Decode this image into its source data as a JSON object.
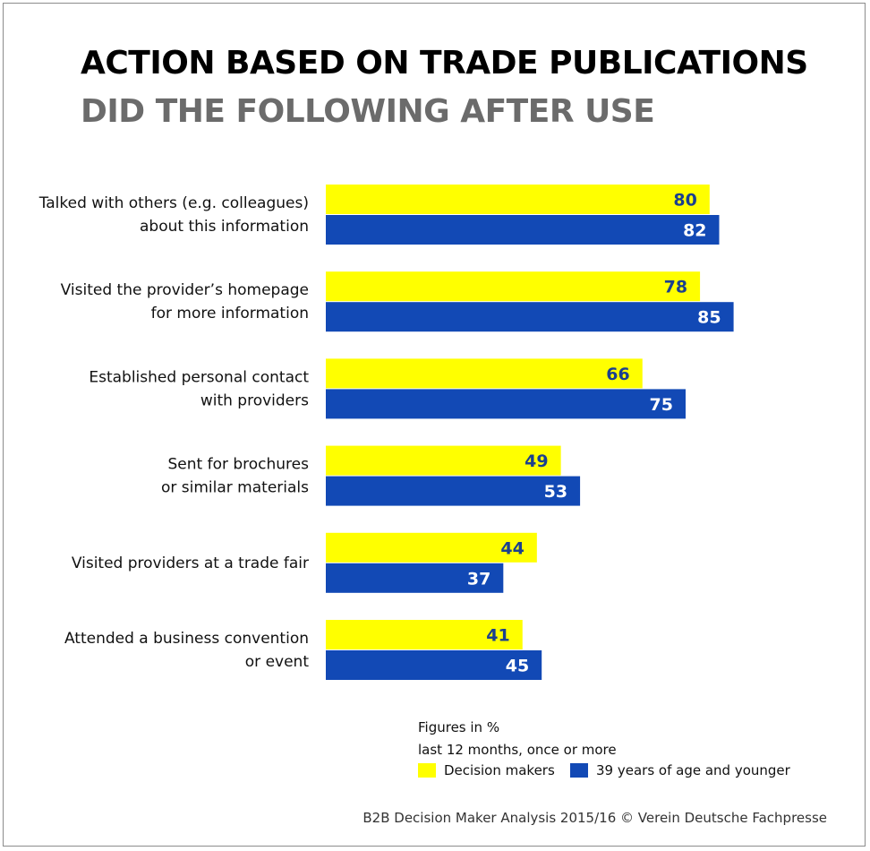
{
  "title": "ACTION BASED ON TRADE PUBLICATIONS",
  "subtitle": "DID THE FOLLOWING AFTER USE",
  "notes": [
    "Figures in %",
    "last 12 months, once or more"
  ],
  "source": "B2B Decision Maker Analysis 2015/16 © Verein Deutsche Fachpresse",
  "colors": {
    "series1": "#ffff00",
    "series2": "#1249b5",
    "label1": "#1a3f8f",
    "label2": "#ffffff"
  },
  "chart_data": {
    "type": "bar",
    "orientation": "horizontal",
    "categories": [
      [
        "Talked with others (e.g. colleagues)",
        "about this information"
      ],
      [
        "Visited the provider’s homepage",
        "for more information"
      ],
      [
        "Established personal contact",
        "with providers"
      ],
      [
        "Sent for brochures",
        "or similar materials"
      ],
      [
        "Visited providers at a trade fair"
      ],
      [
        "Attended a business convention",
        "or event"
      ]
    ],
    "series": [
      {
        "name": "Decision makers",
        "values": [
          80,
          78,
          66,
          49,
          44,
          41
        ]
      },
      {
        "name": "39 years of age and younger",
        "values": [
          82,
          85,
          75,
          53,
          37,
          45
        ]
      }
    ],
    "xlim": [
      0,
      100
    ],
    "grid": false,
    "legend": "bottom-right"
  }
}
